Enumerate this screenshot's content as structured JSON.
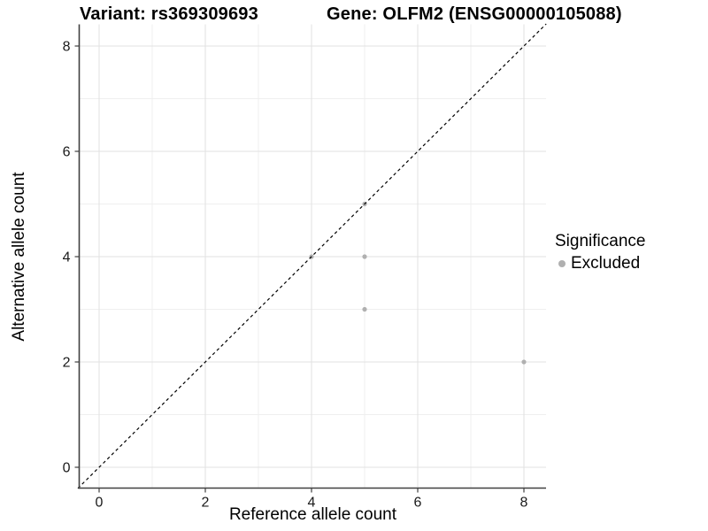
{
  "header": {
    "variant_title": "Variant: rs369309693",
    "gene_title": "Gene: OLFM2 (ENSG00000105088)"
  },
  "legend": {
    "title": "Significance",
    "items": [
      {
        "label": "Excluded",
        "color": "#b0b0b0"
      }
    ]
  },
  "chart_data": {
    "type": "scatter",
    "title": "Variant: rs369309693 | Gene: OLFM2 (ENSG00000105088)",
    "xlabel": "Reference allele count",
    "ylabel": "Alternative allele count",
    "x_ticks": [
      0,
      2,
      4,
      6,
      8
    ],
    "y_ticks": [
      0,
      2,
      4,
      6,
      8
    ],
    "x_minor_ticks": [
      1,
      3,
      5,
      7
    ],
    "y_minor_ticks": [
      1,
      3,
      5,
      7
    ],
    "xlim": [
      -0.4,
      8.42
    ],
    "ylim": [
      -0.4,
      8.42
    ],
    "grid": "major and minor gridlines, light gray on white",
    "legend_position": "right",
    "identity_line": {
      "slope": 1,
      "intercept": 0,
      "style": "dashed",
      "color": "#000000"
    },
    "series": [
      {
        "name": "Excluded",
        "color": "#b0b0b0",
        "points": [
          [
            4,
            4
          ],
          [
            5,
            3
          ],
          [
            5,
            4
          ],
          [
            5,
            5
          ],
          [
            8,
            2
          ]
        ]
      }
    ]
  },
  "colors": {
    "background": "#ffffff",
    "grid_major": "#e2e2e2",
    "grid_minor": "#efefef",
    "axis_line": "#404040",
    "tick_text": "#1a1a1a",
    "point": "#b0b0b0"
  }
}
